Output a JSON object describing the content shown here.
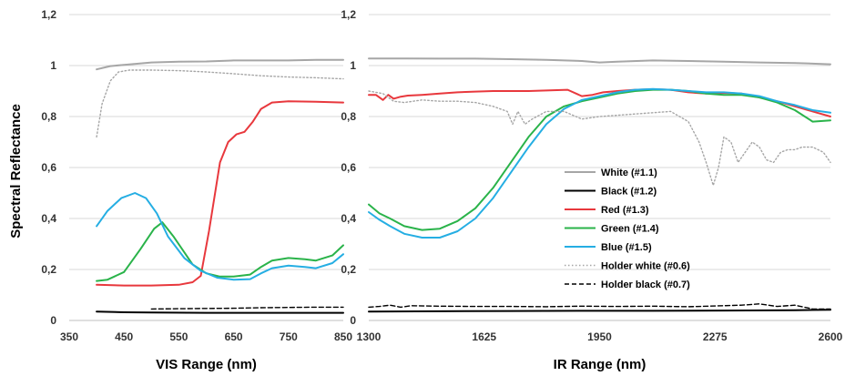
{
  "ylabel": "Spectral Reflectance",
  "colors": {
    "white": "#a6a6a6",
    "black": "#000000",
    "red": "#e8383d",
    "green": "#2ab34a",
    "blue": "#25aee3",
    "holder_white": "#a6a6a6",
    "holder_black": "#000000",
    "grid": "#d9d9d9"
  },
  "chart_data": [
    {
      "type": "line",
      "xlabel": "VIS Range (nm)",
      "ylabel": "Spectral Reflectance",
      "xlim": [
        350,
        850
      ],
      "ylim": [
        0,
        1.2
      ],
      "xticks": [
        "350",
        "450",
        "550",
        "650",
        "750",
        "850"
      ],
      "yticks": [
        "0",
        "0,2",
        "0,4",
        "0,6",
        "0,8",
        "1",
        "1,2"
      ],
      "grid": "horizontal",
      "series": [
        {
          "name": "White (#1.1)",
          "style": "solid",
          "x": [
            400,
            425,
            450,
            500,
            550,
            600,
            650,
            700,
            750,
            800,
            850
          ],
          "y": [
            0.985,
            0.998,
            1.003,
            1.012,
            1.015,
            1.016,
            1.02,
            1.02,
            1.02,
            1.022,
            1.022
          ]
        },
        {
          "name": "Black (#1.2)",
          "style": "solid",
          "x": [
            400,
            450,
            500,
            600,
            700,
            850
          ],
          "y": [
            0.035,
            0.032,
            0.031,
            0.03,
            0.03,
            0.03
          ]
        },
        {
          "name": "Red (#1.3)",
          "style": "solid",
          "x": [
            400,
            450,
            500,
            550,
            575,
            590,
            605,
            625,
            640,
            655,
            670,
            685,
            700,
            720,
            750,
            800,
            850
          ],
          "y": [
            0.14,
            0.137,
            0.137,
            0.14,
            0.15,
            0.175,
            0.35,
            0.62,
            0.7,
            0.73,
            0.74,
            0.78,
            0.83,
            0.855,
            0.86,
            0.858,
            0.855
          ]
        },
        {
          "name": "Green (#1.4)",
          "style": "solid",
          "x": [
            400,
            420,
            450,
            480,
            505,
            520,
            540,
            575,
            600,
            625,
            650,
            680,
            700,
            720,
            750,
            780,
            800,
            830,
            850
          ],
          "y": [
            0.155,
            0.16,
            0.19,
            0.28,
            0.36,
            0.385,
            0.33,
            0.22,
            0.185,
            0.172,
            0.172,
            0.18,
            0.21,
            0.235,
            0.245,
            0.24,
            0.235,
            0.255,
            0.295
          ]
        },
        {
          "name": "Blue (#1.5)",
          "style": "solid",
          "x": [
            400,
            420,
            445,
            470,
            490,
            510,
            530,
            560,
            590,
            620,
            650,
            680,
            700,
            720,
            750,
            780,
            800,
            830,
            850
          ],
          "y": [
            0.37,
            0.43,
            0.48,
            0.5,
            0.48,
            0.42,
            0.33,
            0.245,
            0.195,
            0.168,
            0.16,
            0.162,
            0.185,
            0.205,
            0.215,
            0.21,
            0.205,
            0.225,
            0.26
          ]
        },
        {
          "name": "Holder white (#0.6)",
          "style": "dotted",
          "x": [
            400,
            410,
            425,
            440,
            460,
            500,
            550,
            600,
            650,
            700,
            750,
            800,
            850
          ],
          "y": [
            0.72,
            0.85,
            0.94,
            0.975,
            0.982,
            0.982,
            0.98,
            0.975,
            0.968,
            0.96,
            0.955,
            0.952,
            0.948
          ]
        },
        {
          "name": "Holder black (#0.7)",
          "style": "dashed",
          "x": [
            500,
            550,
            600,
            650,
            700,
            750,
            800,
            850
          ],
          "y": [
            0.045,
            0.046,
            0.047,
            0.048,
            0.05,
            0.051,
            0.052,
            0.052
          ]
        }
      ]
    },
    {
      "type": "line",
      "xlabel": "IR Range (nm)",
      "xlim": [
        1300,
        2600
      ],
      "ylim": [
        0,
        1.2
      ],
      "xticks": [
        "1300",
        "1625",
        "1950",
        "2275",
        "2600"
      ],
      "yticks": [
        "0",
        "0,2",
        "0,4",
        "0,6",
        "0,8",
        "1",
        "1,2"
      ],
      "grid": "horizontal",
      "legend_position": "center-right",
      "series": [
        {
          "name": "White (#1.1)",
          "style": "solid",
          "x": [
            1300,
            1400,
            1500,
            1600,
            1700,
            1800,
            1900,
            1950,
            2000,
            2100,
            2200,
            2300,
            2400,
            2500,
            2600
          ],
          "y": [
            1.028,
            1.028,
            1.027,
            1.027,
            1.025,
            1.022,
            1.018,
            1.012,
            1.015,
            1.02,
            1.018,
            1.015,
            1.012,
            1.01,
            1.005
          ]
        },
        {
          "name": "Black (#1.2)",
          "style": "solid",
          "x": [
            1300,
            1500,
            1700,
            1900,
            2100,
            2300,
            2500,
            2600
          ],
          "y": [
            0.035,
            0.036,
            0.037,
            0.038,
            0.038,
            0.039,
            0.04,
            0.042
          ]
        },
        {
          "name": "Red (#1.3)",
          "style": "solid",
          "x": [
            1300,
            1320,
            1340,
            1355,
            1370,
            1390,
            1410,
            1450,
            1500,
            1550,
            1600,
            1650,
            1700,
            1750,
            1800,
            1860,
            1900,
            1930,
            1960,
            2000,
            2050,
            2100,
            2150,
            2200,
            2250,
            2300,
            2350,
            2400,
            2450,
            2500,
            2550,
            2600
          ],
          "y": [
            0.885,
            0.885,
            0.865,
            0.885,
            0.87,
            0.878,
            0.882,
            0.885,
            0.89,
            0.895,
            0.898,
            0.9,
            0.9,
            0.9,
            0.902,
            0.905,
            0.88,
            0.885,
            0.895,
            0.9,
            0.905,
            0.907,
            0.905,
            0.895,
            0.89,
            0.893,
            0.89,
            0.875,
            0.86,
            0.84,
            0.82,
            0.8
          ]
        },
        {
          "name": "Green (#1.4)",
          "style": "solid",
          "x": [
            1300,
            1330,
            1360,
            1400,
            1450,
            1500,
            1550,
            1600,
            1650,
            1700,
            1750,
            1800,
            1850,
            1900,
            1950,
            2000,
            2050,
            2100,
            2150,
            2200,
            2250,
            2300,
            2350,
            2400,
            2450,
            2500,
            2550,
            2600
          ],
          "y": [
            0.455,
            0.42,
            0.4,
            0.37,
            0.355,
            0.36,
            0.39,
            0.44,
            0.52,
            0.62,
            0.72,
            0.8,
            0.84,
            0.86,
            0.875,
            0.89,
            0.9,
            0.905,
            0.905,
            0.9,
            0.89,
            0.885,
            0.885,
            0.875,
            0.855,
            0.825,
            0.78,
            0.785
          ]
        },
        {
          "name": "Blue (#1.5)",
          "style": "solid",
          "x": [
            1300,
            1330,
            1360,
            1400,
            1450,
            1500,
            1550,
            1600,
            1650,
            1700,
            1750,
            1800,
            1850,
            1900,
            1950,
            2000,
            2050,
            2100,
            2150,
            2200,
            2250,
            2300,
            2350,
            2400,
            2450,
            2500,
            2550,
            2600
          ],
          "y": [
            0.425,
            0.395,
            0.37,
            0.34,
            0.325,
            0.325,
            0.35,
            0.4,
            0.48,
            0.58,
            0.68,
            0.77,
            0.83,
            0.865,
            0.88,
            0.895,
            0.905,
            0.908,
            0.905,
            0.9,
            0.895,
            0.895,
            0.89,
            0.88,
            0.86,
            0.845,
            0.825,
            0.815
          ]
        },
        {
          "name": "Holder white (#0.6)",
          "style": "dotted",
          "x": [
            1300,
            1340,
            1370,
            1400,
            1450,
            1500,
            1550,
            1600,
            1650,
            1690,
            1705,
            1720,
            1740,
            1760,
            1800,
            1850,
            1900,
            1950,
            2000,
            2050,
            2100,
            2150,
            2200,
            2230,
            2250,
            2270,
            2285,
            2300,
            2320,
            2340,
            2360,
            2380,
            2400,
            2420,
            2440,
            2460,
            2480,
            2500,
            2520,
            2550,
            2580,
            2600
          ],
          "y": [
            0.9,
            0.89,
            0.86,
            0.855,
            0.865,
            0.86,
            0.86,
            0.855,
            0.84,
            0.82,
            0.77,
            0.82,
            0.77,
            0.79,
            0.82,
            0.82,
            0.79,
            0.8,
            0.805,
            0.81,
            0.815,
            0.82,
            0.78,
            0.7,
            0.62,
            0.53,
            0.6,
            0.72,
            0.7,
            0.62,
            0.66,
            0.7,
            0.68,
            0.63,
            0.62,
            0.66,
            0.67,
            0.67,
            0.68,
            0.68,
            0.66,
            0.62
          ]
        },
        {
          "name": "Holder black (#0.7)",
          "style": "dashed",
          "x": [
            1300,
            1330,
            1360,
            1390,
            1420,
            1500,
            1600,
            1700,
            1800,
            1900,
            2000,
            2100,
            2200,
            2300,
            2350,
            2400,
            2450,
            2500,
            2550,
            2600
          ],
          "y": [
            0.052,
            0.055,
            0.06,
            0.052,
            0.058,
            0.056,
            0.055,
            0.055,
            0.054,
            0.056,
            0.055,
            0.056,
            0.054,
            0.058,
            0.06,
            0.065,
            0.055,
            0.06,
            0.045,
            0.045
          ]
        }
      ]
    }
  ]
}
